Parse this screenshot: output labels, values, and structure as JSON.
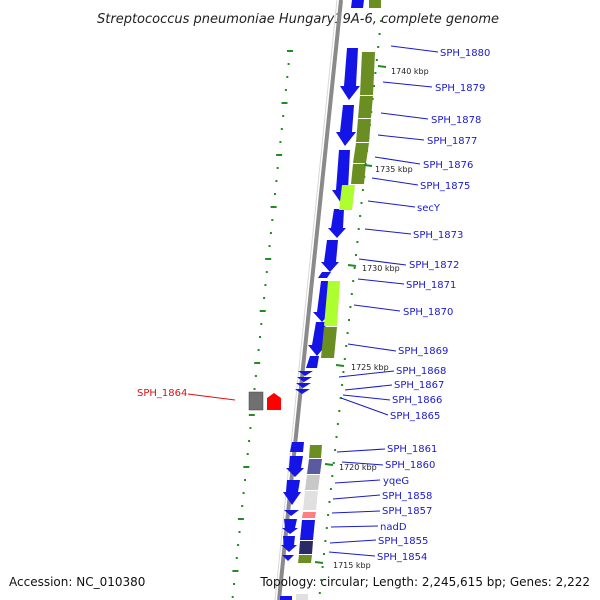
{
  "title": "Streptococcus pneumoniae Hungary19A-6, complete genome",
  "footer": {
    "accession": "Accession: NC_010380",
    "topology": "Topology: circular; Length: 2,245,615 bp; Genes: 2,222"
  },
  "kbp_labels": [
    "1740 kbp",
    "1735 kbp",
    "1730 kbp",
    "1725 kbp",
    "1720 kbp",
    "1715 kbp"
  ],
  "gene_labels": [
    "SPH_1880",
    "SPH_1879",
    "SPH_1878",
    "SPH_1877",
    "SPH_1876",
    "SPH_1875",
    "secY",
    "SPH_1873",
    "SPH_1872",
    "SPH_1871",
    "SPH_1870",
    "SPH_1869",
    "SPH_1868",
    "SPH_1867",
    "SPH_1866",
    "SPH_1865",
    "SPH_1861",
    "SPH_1860",
    "yqeG",
    "SPH_1858",
    "SPH_1857",
    "nadD",
    "SPH_1855",
    "SPH_1854"
  ],
  "highlight_gene": "SPH_1864",
  "colors": {
    "forward_gene": "#1414e6",
    "cog_dark_green": "#6b8e23",
    "cog_light_green": "#adff2f",
    "highlight": "#ff0000",
    "label": "#1a1acc",
    "tick": "#228b22"
  }
}
